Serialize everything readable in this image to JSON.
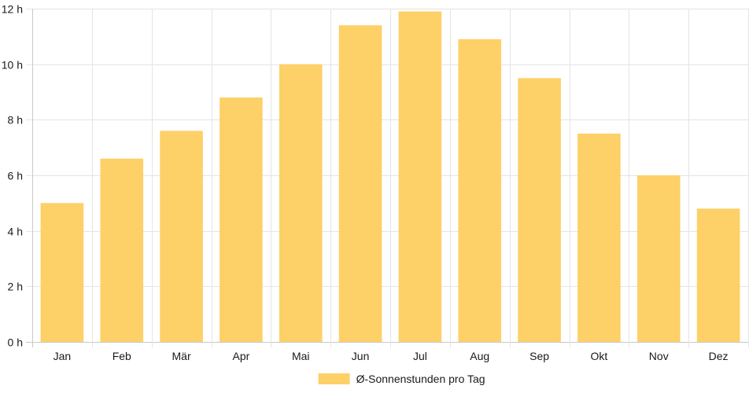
{
  "chart_data": {
    "type": "bar",
    "categories": [
      "Jan",
      "Feb",
      "Mär",
      "Apr",
      "Mai",
      "Jun",
      "Jul",
      "Aug",
      "Sep",
      "Okt",
      "Nov",
      "Dez"
    ],
    "series": [
      {
        "name": "Ø-Sonnenstunden pro Tag",
        "values": [
          5.0,
          6.6,
          7.6,
          8.8,
          10.0,
          11.4,
          11.9,
          10.9,
          9.5,
          7.5,
          6.0,
          4.8
        ],
        "color": "#fdd068"
      }
    ],
    "y_ticks": [
      0,
      2,
      4,
      6,
      8,
      10,
      12
    ],
    "y_tick_suffix": " h",
    "ylim": [
      0,
      12
    ],
    "grid": true,
    "legend_position": "bottom-center",
    "title": "",
    "xlabel": "",
    "ylabel": ""
  }
}
